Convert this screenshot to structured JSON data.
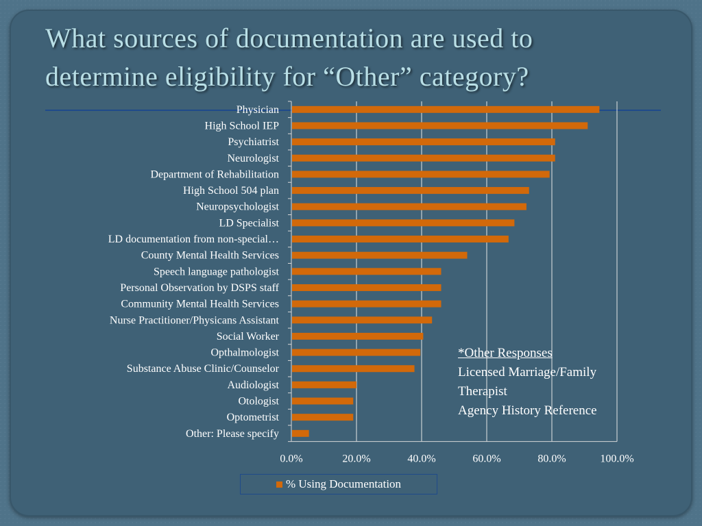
{
  "slide": {
    "title_line1": "What sources of documentation are used to",
    "title_line2": "determine eligibility for “Other” category?"
  },
  "note": {
    "header": "*Other Responses",
    "lines": [
      "Licensed Marriage/Family",
      "Therapist",
      "Agency History Reference"
    ]
  },
  "legend_label": "% Using Documentation",
  "colors": {
    "bar": "#d2690a",
    "background": "#3f6176",
    "title": "#b9dfe6"
  },
  "chart_data": {
    "type": "bar",
    "orientation": "horizontal",
    "categories": [
      "Physician",
      "High School IEP",
      "Psychiatrist",
      "Neurologist",
      "Department of Rehabilitation",
      "High School 504 plan",
      "Neuropsychologist",
      "LD Specialist",
      "LD documentation from non-special…",
      "County Mental Health Services",
      "Speech language pathologist",
      "Personal Observation by DSPS staff",
      "Community Mental Health Services",
      "Nurse Practitioner/Physicans Assistant",
      "Social Worker",
      "Opthalmologist",
      "Substance Abuse Clinic/Counselor",
      "Audiologist",
      "Otologist",
      "Optometrist",
      "Other: Please specify"
    ],
    "series": [
      {
        "name": "% Using Documentation",
        "values": [
          94.6,
          91.0,
          81.0,
          81.0,
          79.3,
          73.0,
          72.2,
          68.5,
          66.7,
          54.0,
          46.0,
          46.0,
          46.0,
          43.2,
          40.5,
          39.6,
          37.8,
          20.0,
          19.0,
          19.0,
          5.4
        ]
      }
    ],
    "xlim": [
      0,
      100
    ],
    "xticks": [
      "0.0%",
      "20.0%",
      "40.0%",
      "60.0%",
      "80.0%",
      "100.0%"
    ],
    "grid": true,
    "legend": "bottom"
  }
}
